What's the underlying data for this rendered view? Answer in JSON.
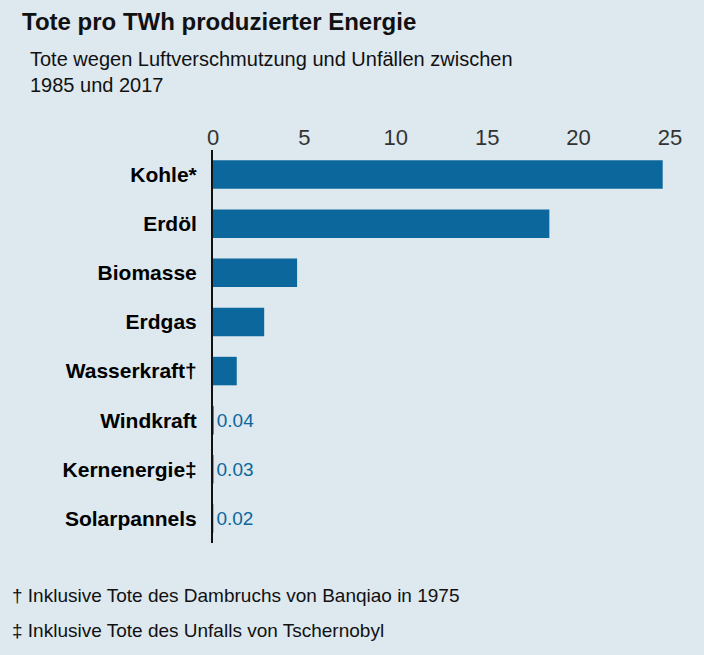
{
  "chart_data": {
    "type": "bar",
    "orientation": "horizontal",
    "title": "Tote pro TWh produzierter Energie",
    "subtitle": "Tote wegen Luftverschmutzung und Unfällen zwischen 1985 und 2017",
    "categories": [
      "Kohle*",
      "Erdöl",
      "Biomasse",
      "Erdgas",
      "Wasserkraft†",
      "Windkraft",
      "Kernenergie‡",
      "Solarpannels"
    ],
    "values": [
      24.6,
      18.4,
      4.6,
      2.8,
      1.3,
      0.04,
      0.03,
      0.02
    ],
    "data_labels": true,
    "value_labels": [
      null,
      null,
      null,
      null,
      null,
      "0.04",
      "0.03",
      "0.02"
    ],
    "color": "#0b679c",
    "xlim": [
      0,
      25
    ],
    "xticks": [
      0,
      5,
      10,
      15,
      20,
      25
    ],
    "grid": false,
    "annotations": [
      "† Inklusive Tote des Dambruchs von Banqiao in 1975",
      "‡ Inklusive Tote des Unfalls von Tschernobyl"
    ]
  }
}
